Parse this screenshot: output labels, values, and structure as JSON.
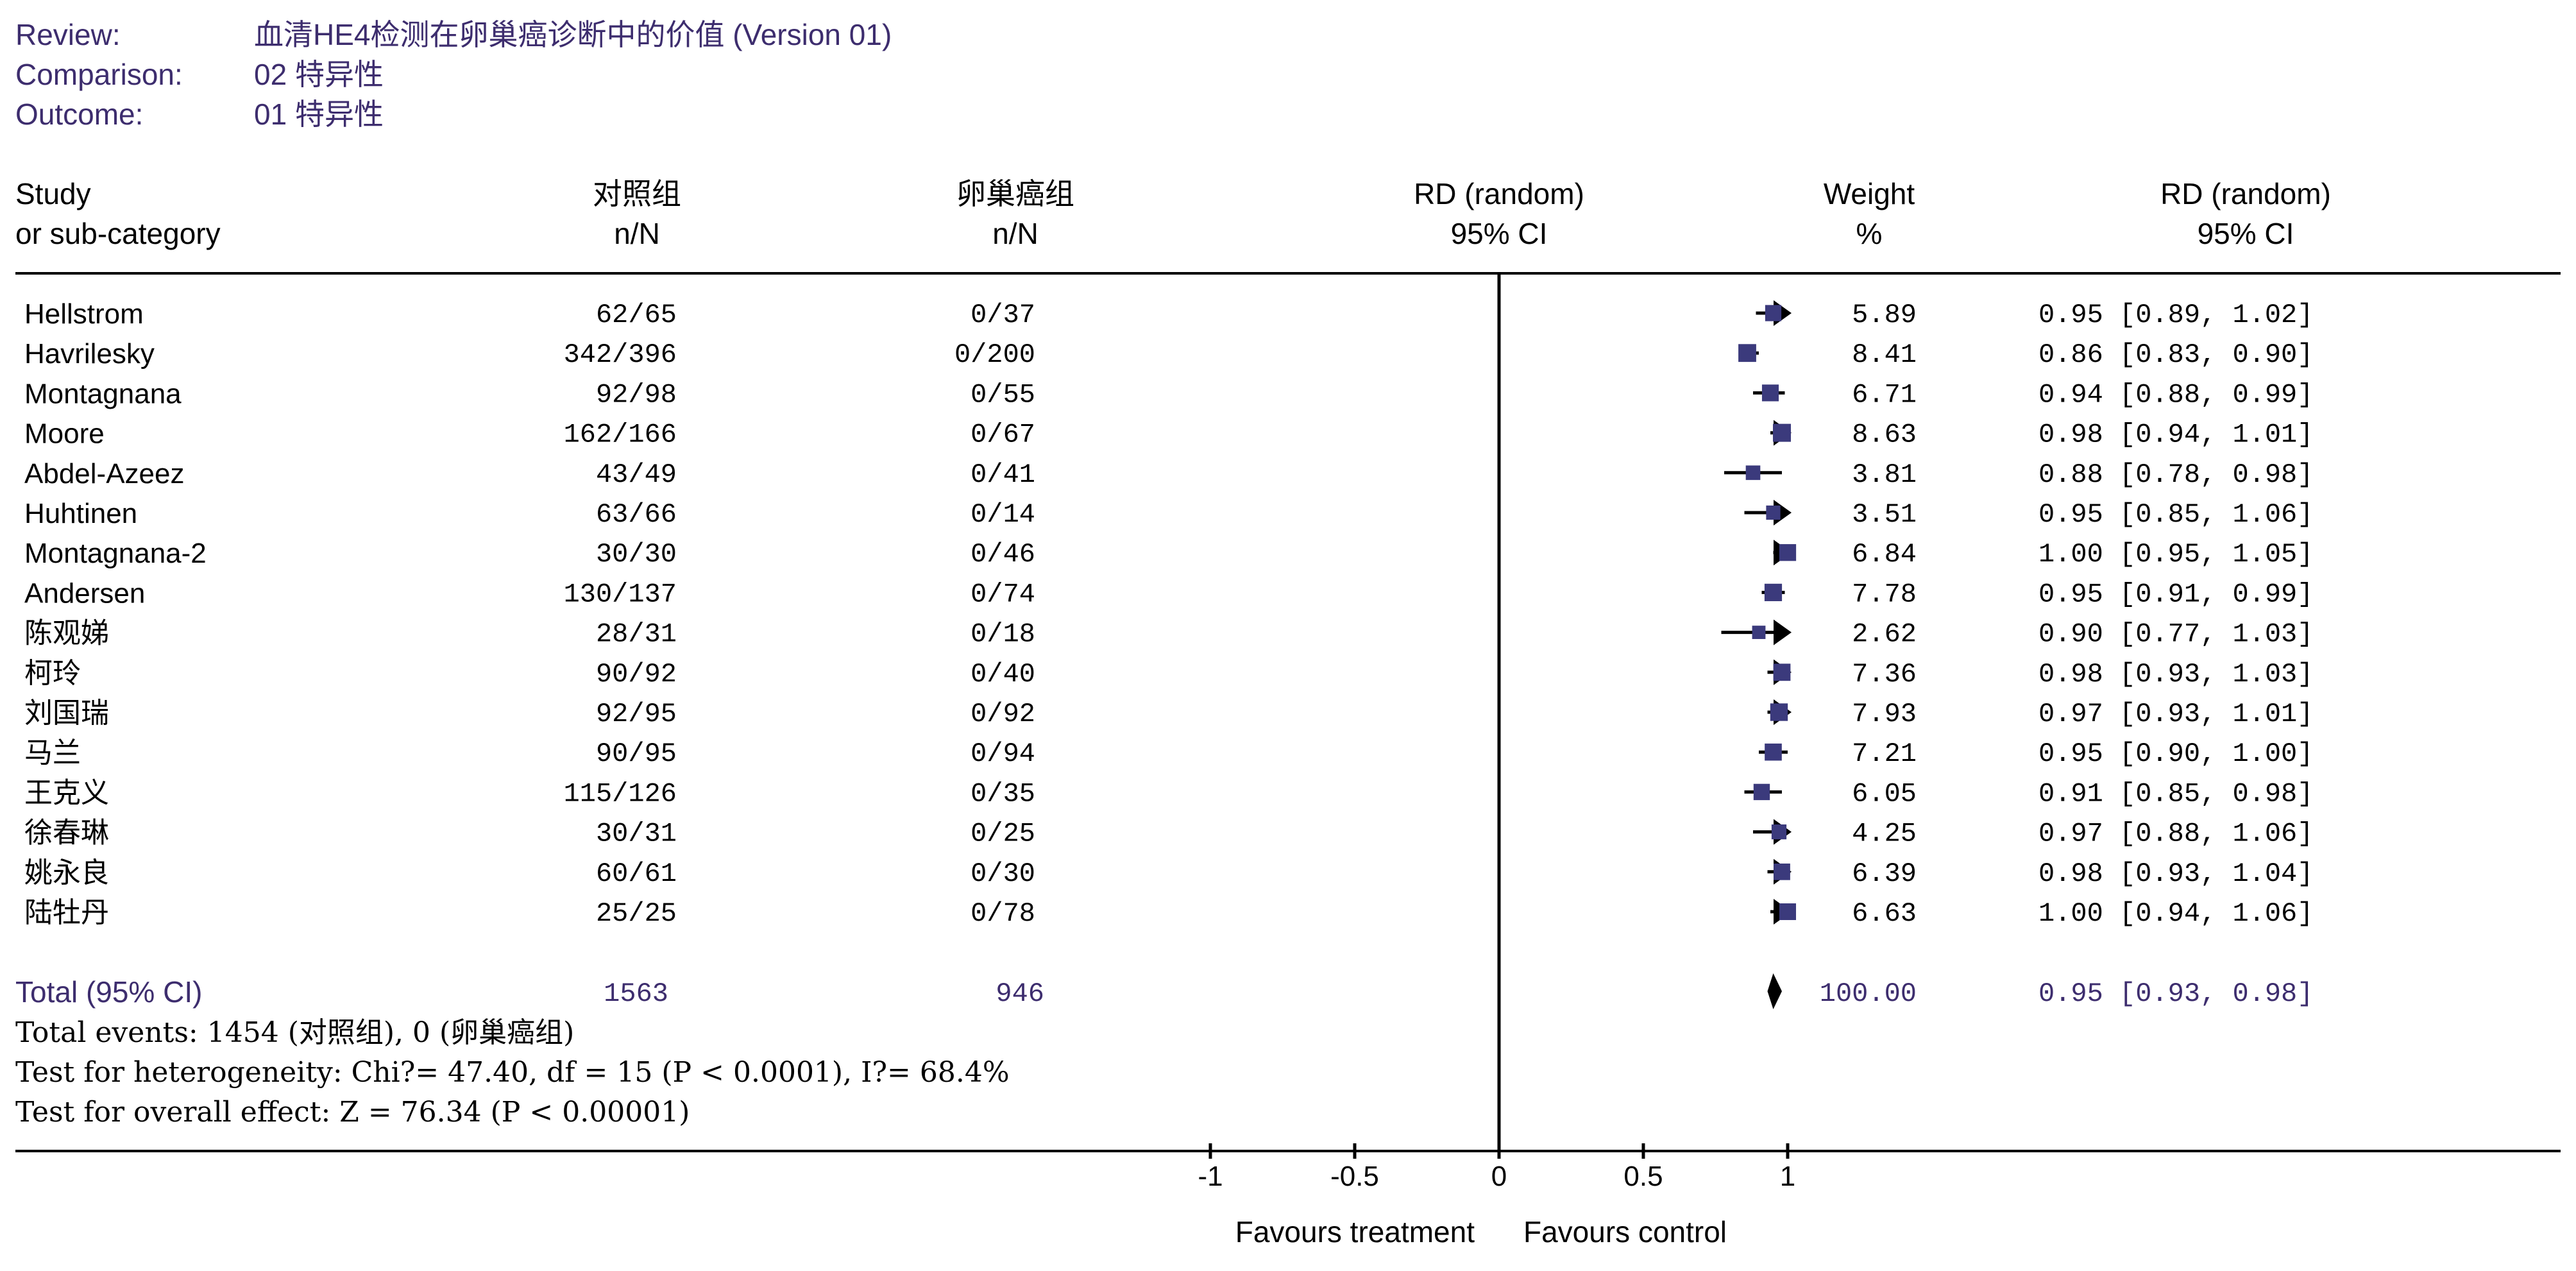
{
  "meta": {
    "review_label": "Review:",
    "review_value": "血清HE4检测在卵巢癌诊断中的价值 (Version 01)",
    "comparison_label": "Comparison:",
    "comparison_value": "02 特异性",
    "outcome_label": "Outcome:",
    "outcome_value": "01 特异性"
  },
  "headers": {
    "study_1": "Study",
    "study_2": "or sub-category",
    "group1_1": "对照组",
    "group1_2": "n/N",
    "group2_1": "卵巢癌组",
    "group2_2": "n/N",
    "plot_1": "RD (random)",
    "plot_2": "95% CI",
    "weight_1": "Weight",
    "weight_2": "%",
    "ci_1": "RD (random)",
    "ci_2": "95% CI"
  },
  "total": {
    "label": "Total (95% CI)",
    "n1": "1563",
    "n2": "946",
    "weight": "100.00",
    "ci_text": "0.95 [0.93, 0.98]",
    "events": "Total events: 1454 (对照组), 0 (卵巢癌组)",
    "heterogeneity": "Test for heterogeneity: Chi?= 47.40, df = 15 (P < 0.0001), I?= 68.4%",
    "overall": "Test for overall effect: Z = 76.34 (P < 0.00001)"
  },
  "axis_labels": {
    "left": "Favours treatment",
    "right": "Favours control"
  },
  "colors": {
    "header_text": "#3d2d6e",
    "box": "#3b3a7c",
    "line": "#000000"
  },
  "chart_data": {
    "type": "forest",
    "measure": "RD (random)",
    "xlim": [
      -1,
      1
    ],
    "ticks": [
      {
        "value": -1,
        "label": "-1"
      },
      {
        "value": -0.5,
        "label": "-0.5"
      },
      {
        "value": 0,
        "label": "0"
      },
      {
        "value": 0.5,
        "label": "0.5"
      },
      {
        "value": 1,
        "label": "1"
      }
    ],
    "studies": [
      {
        "name": "Hellstrom",
        "n1": "62/65",
        "n2": "0/37",
        "rd": 0.95,
        "lo": 0.89,
        "hi": 1.02,
        "weight": "5.89",
        "ci_text": "0.95 [0.89, 1.02]"
      },
      {
        "name": "Havrilesky",
        "n1": "342/396",
        "n2": "0/200",
        "rd": 0.86,
        "lo": 0.83,
        "hi": 0.9,
        "weight": "8.41",
        "ci_text": "0.86 [0.83, 0.90]"
      },
      {
        "name": "Montagnana",
        "n1": "92/98",
        "n2": "0/55",
        "rd": 0.94,
        "lo": 0.88,
        "hi": 0.99,
        "weight": "6.71",
        "ci_text": "0.94 [0.88, 0.99]"
      },
      {
        "name": "Moore",
        "n1": "162/166",
        "n2": "0/67",
        "rd": 0.98,
        "lo": 0.94,
        "hi": 1.01,
        "weight": "8.63",
        "ci_text": "0.98 [0.94, 1.01]"
      },
      {
        "name": "Abdel-Azeez",
        "n1": "43/49",
        "n2": "0/41",
        "rd": 0.88,
        "lo": 0.78,
        "hi": 0.98,
        "weight": "3.81",
        "ci_text": "0.88 [0.78, 0.98]"
      },
      {
        "name": "Huhtinen",
        "n1": "63/66",
        "n2": "0/14",
        "rd": 0.95,
        "lo": 0.85,
        "hi": 1.06,
        "weight": "3.51",
        "ci_text": "0.95 [0.85, 1.06]"
      },
      {
        "name": "Montagnana-2",
        "n1": "30/30",
        "n2": "0/46",
        "rd": 1.0,
        "lo": 0.95,
        "hi": 1.05,
        "weight": "6.84",
        "ci_text": "1.00 [0.95, 1.05]"
      },
      {
        "name": "Andersen",
        "n1": "130/137",
        "n2": "0/74",
        "rd": 0.95,
        "lo": 0.91,
        "hi": 0.99,
        "weight": "7.78",
        "ci_text": "0.95 [0.91, 0.99]"
      },
      {
        "name": "陈观娣",
        "n1": "28/31",
        "n2": "0/18",
        "rd": 0.9,
        "lo": 0.77,
        "hi": 1.03,
        "weight": "2.62",
        "ci_text": "0.90 [0.77, 1.03]"
      },
      {
        "name": "柯玲",
        "n1": "90/92",
        "n2": "0/40",
        "rd": 0.98,
        "lo": 0.93,
        "hi": 1.03,
        "weight": "7.36",
        "ci_text": "0.98 [0.93, 1.03]"
      },
      {
        "name": "刘国瑞",
        "n1": "92/95",
        "n2": "0/92",
        "rd": 0.97,
        "lo": 0.93,
        "hi": 1.01,
        "weight": "7.93",
        "ci_text": "0.97 [0.93, 1.01]"
      },
      {
        "name": "马兰",
        "n1": "90/95",
        "n2": "0/94",
        "rd": 0.95,
        "lo": 0.9,
        "hi": 1.0,
        "weight": "7.21",
        "ci_text": "0.95 [0.90, 1.00]"
      },
      {
        "name": "王克义",
        "n1": "115/126",
        "n2": "0/35",
        "rd": 0.91,
        "lo": 0.85,
        "hi": 0.98,
        "weight": "6.05",
        "ci_text": "0.91 [0.85, 0.98]"
      },
      {
        "name": "徐春琳",
        "n1": "30/31",
        "n2": "0/25",
        "rd": 0.97,
        "lo": 0.88,
        "hi": 1.06,
        "weight": "4.25",
        "ci_text": "0.97 [0.88, 1.06]"
      },
      {
        "name": "姚永良",
        "n1": "60/61",
        "n2": "0/30",
        "rd": 0.98,
        "lo": 0.93,
        "hi": 1.04,
        "weight": "6.39",
        "ci_text": "0.98 [0.93, 1.04]"
      },
      {
        "name": "陆牡丹",
        "n1": "25/25",
        "n2": "0/78",
        "rd": 1.0,
        "lo": 0.94,
        "hi": 1.06,
        "weight": "6.63",
        "ci_text": "1.00 [0.94, 1.06]"
      }
    ],
    "pooled": {
      "rd": 0.95,
      "lo": 0.93,
      "hi": 0.98
    }
  }
}
